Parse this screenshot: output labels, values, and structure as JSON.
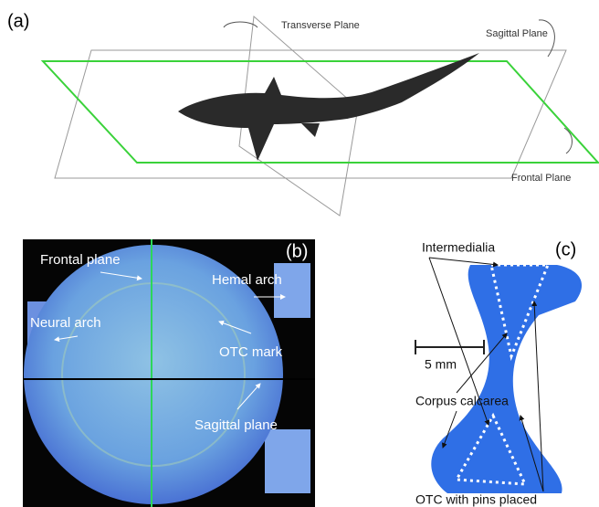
{
  "panel_a": {
    "label": "(a)",
    "transverse": "Transverse Plane",
    "sagittal": "Sagittal Plane",
    "frontal": "Frontal Plane"
  },
  "panel_b": {
    "label": "(b)",
    "frontal": "Frontal plane",
    "hemal": "Hemal arch",
    "neural": "Neural arch",
    "otc": "OTC mark",
    "sagittal": "Sagittal plane"
  },
  "panel_c": {
    "label": "(c)",
    "intermedialia": "Intermedialia",
    "scale": "5 mm",
    "corpus": "Corpus calcarea",
    "pins": "OTC with pins placed"
  }
}
